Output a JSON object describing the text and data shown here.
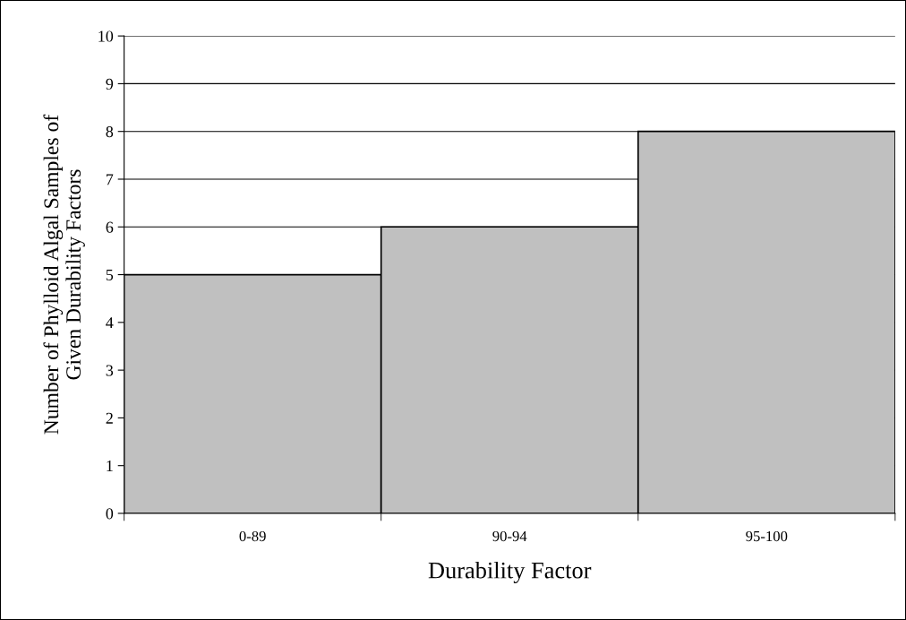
{
  "chart_data": {
    "type": "bar",
    "xlabel": "Durability Factor",
    "ylabel": "Number of Phylloid Algal Samples of\nGiven Durability Factors",
    "categories": [
      "0-89",
      "90-94",
      "95-100"
    ],
    "values": [
      5,
      6,
      8
    ],
    "color": "#c0c0c0",
    "ylim": [
      0,
      10
    ],
    "yticks": [
      0,
      1,
      2,
      3,
      4,
      5,
      6,
      7,
      8,
      9,
      10
    ],
    "grid": "y"
  }
}
